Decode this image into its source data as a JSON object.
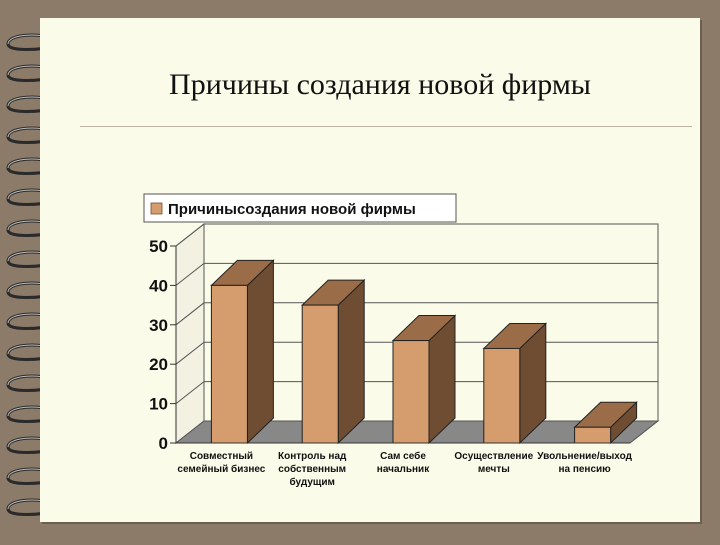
{
  "slide": {
    "title": "Причины создания новой фирмы"
  },
  "chart_data": {
    "type": "bar",
    "title": "",
    "legend": {
      "label": "Причинысоздания новой фирмы",
      "position": "top-left"
    },
    "categories": [
      [
        "Совместный",
        "семейный бизнес"
      ],
      [
        "Контроль над",
        "собственным",
        "будущим"
      ],
      [
        "Сам себе",
        "начальник"
      ],
      [
        "Осуществление",
        "мечты"
      ],
      [
        "Увольнение/выход",
        "на пенсию"
      ]
    ],
    "values": [
      40,
      35,
      26,
      24,
      4
    ],
    "ylim": [
      0,
      50
    ],
    "yticks": [
      0,
      10,
      20,
      30,
      40,
      50
    ],
    "grid": true,
    "three_d": true,
    "colors": {
      "bar_front": "#d59d6d",
      "bar_side": "#6e4d33",
      "bar_top": "#9a6c47",
      "floor": "#888888",
      "back_wall": "#fbfbe9"
    }
  }
}
